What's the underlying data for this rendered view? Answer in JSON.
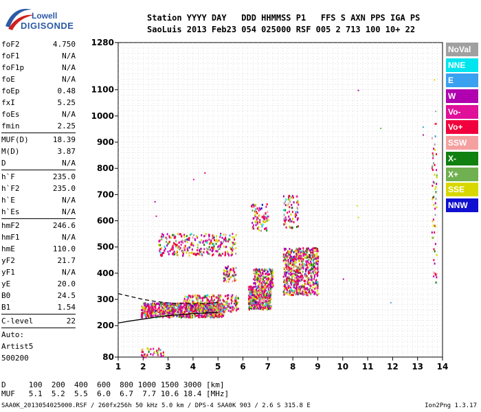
{
  "logo": {
    "line1": "Lowell",
    "line2": "DIGISONDE"
  },
  "header": {
    "line1": "Station YYYY DAY   DDD HHMMSS P1   FFS S AXN PPS IGA PS",
    "line2": "SaoLuis 2013 Feb23 054 025000 RSF 005 2 713 100 10+ 22"
  },
  "params": {
    "group1": [
      {
        "name": "foF2",
        "value": "4.750"
      },
      {
        "name": "foF1",
        "value": "N/A"
      },
      {
        "name": "foF1p",
        "value": "N/A"
      },
      {
        "name": "foE",
        "value": "N/A"
      },
      {
        "name": "foEp",
        "value": "0.48"
      },
      {
        "name": "fxI",
        "value": "5.25"
      },
      {
        "name": "foEs",
        "value": "N/A"
      },
      {
        "name": "fmin",
        "value": "2.25"
      }
    ],
    "group2": [
      {
        "name": "MUF(D)",
        "value": "18.39"
      },
      {
        "name": "M(D)",
        "value": "3.87"
      },
      {
        "name": "D",
        "value": "N/A"
      }
    ],
    "group3": [
      {
        "name": "h`F",
        "value": "235.0"
      },
      {
        "name": "h`F2",
        "value": "235.0"
      },
      {
        "name": "h`E",
        "value": "N/A"
      },
      {
        "name": "h`Es",
        "value": "N/A"
      }
    ],
    "group4": [
      {
        "name": "hmF2",
        "value": "246.6"
      },
      {
        "name": "hmF1",
        "value": "N/A"
      },
      {
        "name": "hmE",
        "value": "110.0"
      },
      {
        "name": "yF2",
        "value": "21.7"
      },
      {
        "name": "yF1",
        "value": "N/A"
      },
      {
        "name": "yE",
        "value": "20.0"
      },
      {
        "name": "B0",
        "value": "24.5"
      },
      {
        "name": "B1",
        "value": "1.54"
      }
    ],
    "clevel": {
      "name": "C-level",
      "value": "22"
    },
    "auto": [
      "Auto:",
      "Artist5",
      "500200"
    ]
  },
  "legend": [
    {
      "label": "NoVal",
      "color": "#a0a0a0"
    },
    {
      "label": "NNE",
      "color": "#00e5ee"
    },
    {
      "label": "E",
      "color": "#3aa0f0"
    },
    {
      "label": "W",
      "color": "#b000b0"
    },
    {
      "label": "Vo-",
      "color": "#e0109a"
    },
    {
      "label": "Vo+",
      "color": "#f0003c"
    },
    {
      "label": "SSW",
      "color": "#f5a0a0"
    },
    {
      "label": "X-",
      "color": "#108010"
    },
    {
      "label": "X+",
      "color": "#70b050"
    },
    {
      "label": "SSE",
      "color": "#d8d800"
    },
    {
      "label": "NNW",
      "color": "#1010d0"
    }
  ],
  "footer": {
    "line1": "D     100  200  400  600  800 1000 1500 3000 [km]",
    "line2": "MUF   5.1  5.2  5.5  6.0  6.7  7.7 10.6 18.4 [MHz]",
    "bottom": "SAA0K_2013054025000.RSF / 260fx256h 50 kHz 5.0 km / DPS-4 SAA0K 903 / 2.6 S 315.8 E",
    "version": "Ion2Png 1.3.17"
  },
  "chart_data": {
    "type": "scatter",
    "xlim": [
      1,
      14
    ],
    "ylim": [
      80,
      1280
    ],
    "x_ticks": [
      1,
      2,
      3,
      4,
      5,
      6,
      7,
      8,
      9,
      10,
      11,
      12,
      13,
      14
    ],
    "y_ticks": [
      80,
      200,
      300,
      400,
      500,
      600,
      700,
      800,
      900,
      1000,
      1100,
      1280
    ],
    "grid": true,
    "traces": [
      {
        "name": "solid",
        "style": "solid",
        "points": [
          [
            1,
            210
          ],
          [
            1.5,
            218
          ],
          [
            2,
            225
          ],
          [
            2.5,
            232
          ],
          [
            3,
            238
          ],
          [
            3.5,
            242
          ],
          [
            4,
            246
          ],
          [
            4.5,
            248
          ],
          [
            5,
            250
          ]
        ]
      },
      {
        "name": "dashed",
        "style": "dashed",
        "points": [
          [
            1,
            322
          ],
          [
            1.5,
            311
          ],
          [
            2,
            300
          ],
          [
            2.5,
            292
          ],
          [
            3,
            287
          ],
          [
            3.5,
            284
          ],
          [
            4,
            283
          ],
          [
            4.5,
            284
          ],
          [
            5,
            288
          ]
        ]
      }
    ],
    "echo_regions": [
      {
        "x": [
          1.9,
          5.2
        ],
        "y": [
          235,
          290
        ],
        "density": 900
      },
      {
        "x": [
          3.6,
          5.8
        ],
        "y": [
          255,
          320
        ],
        "density": 300
      },
      {
        "x": [
          2.6,
          5.7
        ],
        "y": [
          470,
          555
        ],
        "density": 300
      },
      {
        "x": [
          6.2,
          7.1
        ],
        "y": [
          265,
          355
        ],
        "density": 380
      },
      {
        "x": [
          6.4,
          7.2
        ],
        "y": [
          350,
          420
        ],
        "density": 180
      },
      {
        "x": [
          6.3,
          7.0
        ],
        "y": [
          565,
          670
        ],
        "density": 80
      },
      {
        "x": [
          7.6,
          9.0
        ],
        "y": [
          320,
          500
        ],
        "density": 650
      },
      {
        "x": [
          7.6,
          8.2
        ],
        "y": [
          575,
          700
        ],
        "density": 80
      },
      {
        "x": [
          5.2,
          5.7
        ],
        "y": [
          370,
          430
        ],
        "density": 60
      },
      {
        "x": [
          1.9,
          2.8
        ],
        "y": [
          82,
          118
        ],
        "density": 40
      },
      {
        "x": [
          13.55,
          13.75
        ],
        "y": [
          360,
          980
        ],
        "density": 60
      }
    ],
    "isolated_points": [
      [
        2.45,
        675
      ],
      [
        2.5,
        620
      ],
      [
        4.0,
        760
      ],
      [
        4.45,
        785
      ],
      [
        10.55,
        660
      ],
      [
        10.6,
        615
      ],
      [
        10.6,
        1100
      ],
      [
        11.5,
        955
      ],
      [
        11.9,
        290
      ],
      [
        13.2,
        960
      ],
      [
        13.2,
        930
      ],
      [
        13.65,
        1140
      ],
      [
        13.7,
        1020
      ],
      [
        10.0,
        380
      ]
    ]
  }
}
